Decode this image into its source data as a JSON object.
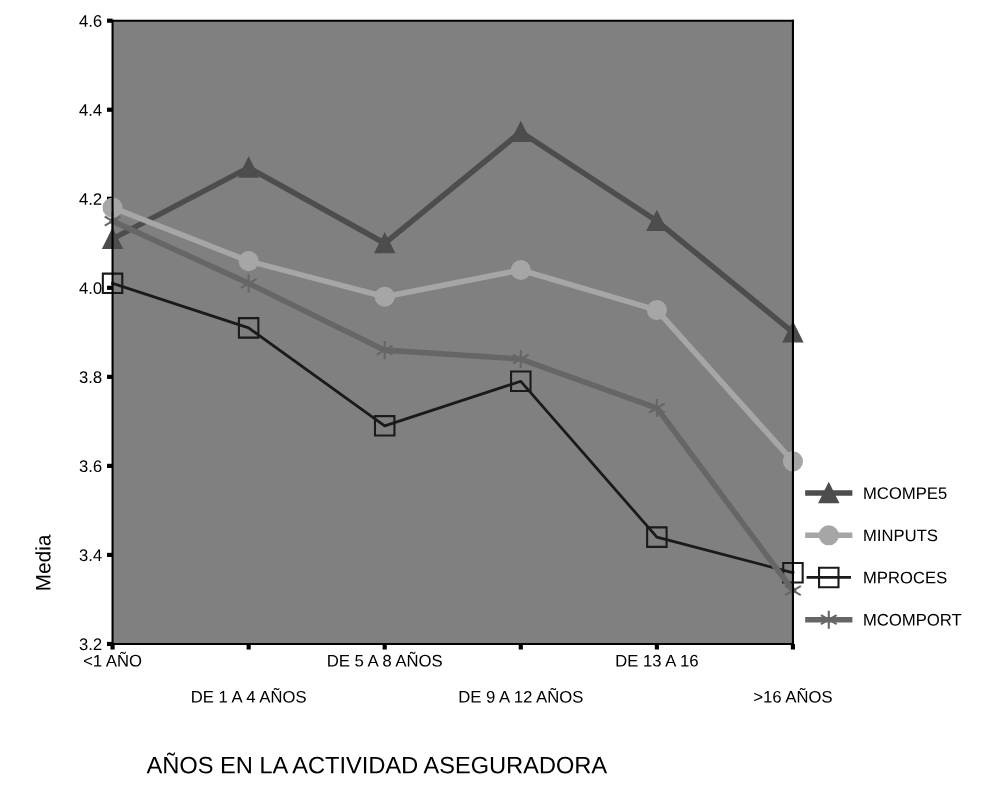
{
  "chart_data": {
    "type": "line",
    "xlabel": "AÑOS EN LA ACTIVIDAD ASEGURADORA",
    "ylabel": "Media",
    "categories": [
      "<1 AÑO",
      "DE 1 A 4 AÑOS",
      "DE 5 A 8 AÑOS",
      "DE 9 A 12 AÑOS",
      "DE 13 A 16",
      ">16 AÑOS"
    ],
    "ylim": [
      3.2,
      4.6
    ],
    "yticks": [
      3.2,
      3.4,
      3.6,
      3.8,
      {
        "value": 4.0,
        "label": "4.0"
      },
      4.2,
      4.4,
      4.6
    ],
    "grid": false,
    "legend": "right",
    "series": [
      {
        "name": "MCOMPE5",
        "color": "#4d4d4d",
        "marker": "triangle",
        "values": [
          4.11,
          4.27,
          4.1,
          4.35,
          4.15,
          3.9
        ]
      },
      {
        "name": "MINPUTS",
        "color": "#a6a6a6",
        "marker": "circle",
        "values": [
          4.18,
          4.06,
          3.98,
          4.04,
          3.95,
          3.61
        ]
      },
      {
        "name": "MPROCES",
        "color": "#1a1a1a",
        "marker": "square",
        "values": [
          4.01,
          3.91,
          3.69,
          3.79,
          3.44,
          3.36
        ]
      },
      {
        "name": "MCOMPORT",
        "color": "#666666",
        "marker": "cross",
        "values": [
          4.15,
          4.01,
          3.86,
          3.84,
          3.73,
          3.32
        ]
      }
    ]
  }
}
